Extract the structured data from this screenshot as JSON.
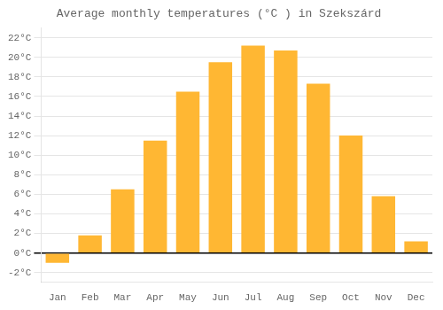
{
  "chart_data": {
    "type": "bar",
    "title": "Average monthly temperatures (°C ) in Szekszárd",
    "categories": [
      "Jan",
      "Feb",
      "Mar",
      "Apr",
      "May",
      "Jun",
      "Jul",
      "Aug",
      "Sep",
      "Oct",
      "Nov",
      "Dec"
    ],
    "values": [
      -1.0,
      1.8,
      6.5,
      11.5,
      16.5,
      19.5,
      21.2,
      20.7,
      17.3,
      12.0,
      5.8,
      1.2
    ],
    "color": "#FFB733",
    "ylim": [
      -3,
      23
    ],
    "yticks": [
      {
        "value": -2,
        "label": "-2°C"
      },
      {
        "value": 0,
        "label": "0°C"
      },
      {
        "value": 2,
        "label": "2°C"
      },
      {
        "value": 4,
        "label": "4°C"
      },
      {
        "value": 6,
        "label": "6°C"
      },
      {
        "value": 8,
        "label": "8°C"
      },
      {
        "value": 10,
        "label": "10°C"
      },
      {
        "value": 12,
        "label": "12°C"
      },
      {
        "value": 14,
        "label": "14°C"
      },
      {
        "value": 16,
        "label": "16°C"
      },
      {
        "value": 18,
        "label": "18°C"
      },
      {
        "value": 20,
        "label": "20°C"
      },
      {
        "value": 22,
        "label": "22°C"
      }
    ],
    "grid": true
  }
}
